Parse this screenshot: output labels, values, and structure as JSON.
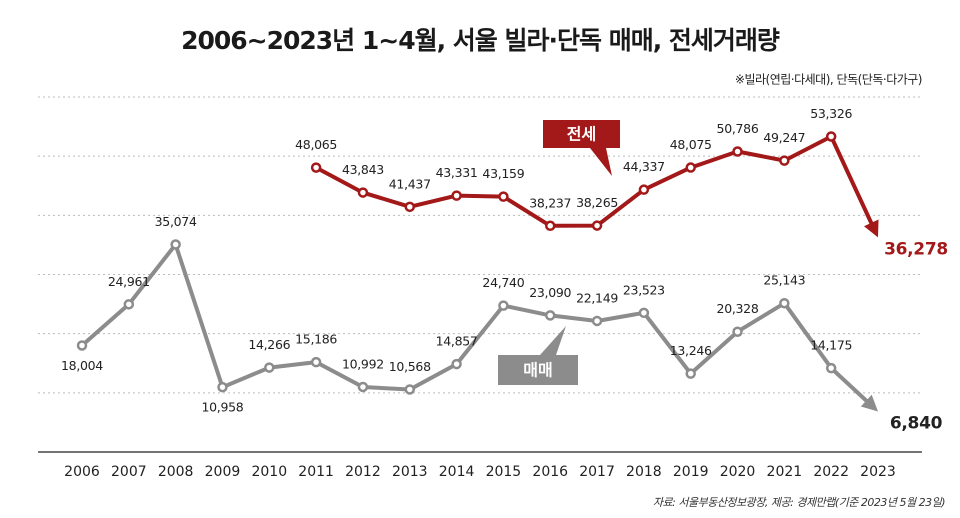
{
  "chart_data": {
    "type": "line",
    "title": "2006~2023년 1~4월, 서울 빌라·단독 매매, 전세거래량",
    "note": "※빌라(연립·다세대), 단독(단독·다가구)",
    "source": "자료: 서울부동산정보광장, 제공: 경제만랩(기준 2023년 5월 23일)",
    "categories": [
      "2006",
      "2007",
      "2008",
      "2009",
      "2010",
      "2011",
      "2012",
      "2013",
      "2014",
      "2015",
      "2016",
      "2017",
      "2018",
      "2019",
      "2020",
      "2021",
      "2022",
      "2023"
    ],
    "ylim": [
      0,
      60000
    ],
    "yticks": [
      0,
      10000,
      20000,
      30000,
      40000,
      50000,
      60000
    ],
    "grid": true,
    "series": [
      {
        "name": "전세",
        "color": "#a31818",
        "values": [
          null,
          null,
          null,
          null,
          null,
          48065,
          43843,
          41437,
          43331,
          43159,
          38237,
          38265,
          44337,
          48075,
          50786,
          49247,
          53326,
          36278
        ],
        "value_labels": [
          null,
          null,
          null,
          null,
          null,
          "48,065",
          "43,843",
          "41,437",
          "43,331",
          "43,159",
          "38,237",
          "38,265",
          "44,337",
          "48,075",
          "50,786",
          "49,247",
          "53,326",
          "36,278"
        ]
      },
      {
        "name": "매매",
        "color": "#8c8c8c",
        "values": [
          18004,
          24961,
          35074,
          10958,
          14266,
          15186,
          10992,
          10568,
          14857,
          24740,
          23090,
          22149,
          23523,
          13246,
          20328,
          25143,
          14175,
          6840
        ],
        "value_labels": [
          "18,004",
          "24,961",
          "35,074",
          "10,958",
          "14,266",
          "15,186",
          "10,992",
          "10,568",
          "14,857",
          "24,740",
          "23,090",
          "22,149",
          "23,523",
          "13,246",
          "20,328",
          "25,143",
          "14,175",
          "6,840"
        ]
      }
    ]
  }
}
